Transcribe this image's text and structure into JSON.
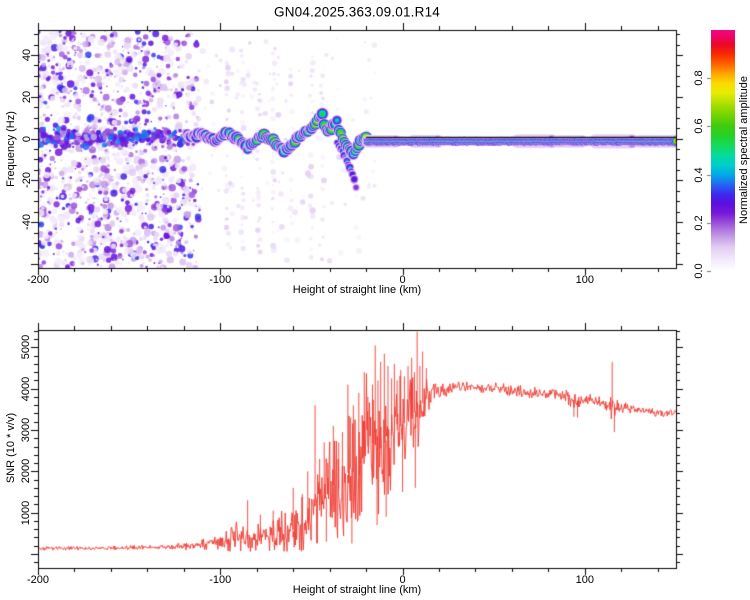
{
  "chart_data": [
    {
      "type": "heatmap",
      "title": "GN04.2025.363.09.01.R14",
      "xlabel": "Height of straight line (km)",
      "ylabel": "Frequency (Hz)",
      "xlim": [
        -200,
        150
      ],
      "ylim": [
        -62,
        52
      ],
      "xticks": {
        "values": [
          -200,
          -100,
          0,
          100
        ],
        "labels": [
          "-200",
          "-100",
          "0",
          "100"
        ]
      },
      "yticks": {
        "values": [
          -40,
          -20,
          0,
          20,
          40
        ],
        "labels": [
          "-40",
          "-20",
          "0",
          "20",
          "40"
        ]
      },
      "colorbar": {
        "label": "Normalized spectral amplitude",
        "tick_values": [
          0,
          0.2,
          0.4,
          0.6,
          0.8
        ],
        "tick_labels": [
          "0.0",
          "0.2",
          "0.4",
          "0.6",
          "0.8"
        ],
        "colormap": [
          [
            0.0,
            "#ffffff"
          ],
          [
            0.05,
            "#f2e8fa"
          ],
          [
            0.1,
            "#e2ccf2"
          ],
          [
            0.15,
            "#be92e4"
          ],
          [
            0.2,
            "#9a4fda"
          ],
          [
            0.24,
            "#7718d8"
          ],
          [
            0.28,
            "#5a0fe0"
          ],
          [
            0.32,
            "#3c2cee"
          ],
          [
            0.36,
            "#2268f2"
          ],
          [
            0.4,
            "#00aae8"
          ],
          [
            0.44,
            "#00cfcc"
          ],
          [
            0.48,
            "#04dc9c"
          ],
          [
            0.52,
            "#14da5c"
          ],
          [
            0.56,
            "#22d228"
          ],
          [
            0.6,
            "#3fcc0f"
          ],
          [
            0.65,
            "#77d400"
          ],
          [
            0.7,
            "#b4e200"
          ],
          [
            0.74,
            "#e8ec00"
          ],
          [
            0.78,
            "#fcd900"
          ],
          [
            0.82,
            "#ffa300"
          ],
          [
            0.86,
            "#ff6000"
          ],
          [
            0.9,
            "#f82a00"
          ],
          [
            0.94,
            "#ec0728"
          ],
          [
            0.97,
            "#ee0460"
          ],
          [
            1.0,
            "#f30585"
          ]
        ]
      },
      "noise": {
        "x_full": [
          -200,
          -125
        ],
        "x_fade": [
          -125,
          -108
        ],
        "count": 1600,
        "band_count": 280,
        "sparse_count": 140
      },
      "streaks": [
        [
          -96,
          0.55
        ],
        [
          -88,
          0.4
        ],
        [
          -79,
          0.5
        ],
        [
          -71,
          0.35
        ],
        [
          -61,
          0.4
        ],
        [
          -50,
          0.45
        ],
        [
          -44,
          0.35
        ]
      ],
      "trace": [
        [
          -118,
          2,
          0.45
        ],
        [
          -114,
          1,
          0.5
        ],
        [
          -110,
          2.5,
          0.5
        ],
        [
          -106,
          0.5,
          0.55
        ],
        [
          -102,
          -1,
          0.55
        ],
        [
          -99,
          1.5,
          0.6
        ],
        [
          -96,
          3,
          0.55
        ],
        [
          -93,
          1,
          0.6
        ],
        [
          -90,
          -0.5,
          0.65
        ],
        [
          -88,
          -2,
          0.6
        ],
        [
          -85,
          -4.5,
          0.55
        ],
        [
          -82,
          -2.5,
          0.6
        ],
        [
          -79,
          0,
          0.72
        ],
        [
          -76,
          1.5,
          0.78
        ],
        [
          -74,
          0.5,
          0.9
        ],
        [
          -72,
          -0.5,
          0.85
        ],
        [
          -70,
          -1.5,
          0.9
        ],
        [
          -68,
          -3.5,
          0.75
        ],
        [
          -65,
          -5.5,
          0.62
        ],
        [
          -62,
          -3.5,
          0.65
        ],
        [
          -59,
          -1,
          0.7
        ],
        [
          -56,
          1,
          0.65
        ],
        [
          -53,
          3,
          0.62
        ],
        [
          -50,
          5,
          0.6
        ],
        [
          -48,
          7,
          0.85
        ],
        [
          -46,
          9.5,
          0.7
        ],
        [
          -44,
          11.5,
          0.55
        ],
        [
          -43,
          7,
          0.6
        ],
        [
          -41,
          3,
          0.7
        ],
        [
          -39,
          5,
          0.75
        ],
        [
          -37,
          7.5,
          0.62
        ],
        [
          -36,
          9,
          0.5
        ],
        [
          -35,
          4,
          0.62
        ],
        [
          -33,
          0,
          0.75
        ],
        [
          -31,
          -3,
          0.7
        ],
        [
          -29,
          -5.5,
          0.65
        ],
        [
          -27,
          -7.5,
          0.6
        ],
        [
          -25,
          -4.5,
          0.7
        ],
        [
          -23,
          -1.5,
          0.8
        ],
        [
          -21,
          0.5,
          0.88
        ],
        [
          -19,
          -1,
          0.92
        ]
      ],
      "tail": [
        [
          -36,
          -2,
          0.35
        ],
        [
          -34,
          -5,
          0.38
        ],
        [
          -32,
          -8,
          0.42
        ],
        [
          -30.5,
          -11,
          0.38
        ],
        [
          -29,
          -14,
          0.42
        ],
        [
          -27.5,
          -17,
          0.36
        ],
        [
          -26.5,
          -20,
          0.32
        ],
        [
          -25.5,
          -23,
          0.3
        ]
      ],
      "flat_band": {
        "x": [
          -19,
          150
        ],
        "freq": -1.3,
        "intensity": 0.95,
        "halo": [
          [
            -20,
            -3,
            1.4
          ],
          [
            6,
            20,
            1.45
          ],
          [
            63,
            82,
            1.55
          ],
          [
            85,
            99,
            1.4
          ],
          [
            105,
            126,
            1.6
          ],
          [
            130,
            150,
            1.45
          ]
        ],
        "core_gap_x": [
          83,
          107
        ]
      },
      "fit_line": {
        "x": [
          -20,
          150
        ],
        "freq": 0.6,
        "color": "#161616"
      }
    },
    {
      "type": "line",
      "xlabel": "Height of straight line (km)",
      "ylabel": "SNR (10 * v/v)",
      "xlim": [
        -200,
        150
      ],
      "ylim": [
        -340,
        5421
      ],
      "xticks": {
        "values": [
          -200,
          -100,
          0,
          100
        ],
        "labels": [
          "-200",
          "-100",
          "0",
          "100"
        ]
      },
      "yticks": {
        "values": [
          1000,
          2000,
          3000,
          4000,
          5000
        ],
        "labels": [
          "1000",
          "2000",
          "3000",
          "4000",
          "5000"
        ]
      },
      "color": "#ee3b32",
      "envelope": [
        [
          -200,
          140,
          55
        ],
        [
          -175,
          140,
          55
        ],
        [
          -150,
          150,
          60
        ],
        [
          -132,
          160,
          70
        ],
        [
          -122,
          185,
          95
        ],
        [
          -113,
          215,
          140
        ],
        [
          -104,
          250,
          200
        ],
        [
          -96,
          290,
          330
        ],
        [
          -89,
          380,
          520
        ],
        [
          -83,
          350,
          300
        ],
        [
          -76,
          400,
          430
        ],
        [
          -69,
          480,
          520
        ],
        [
          -63,
          540,
          640
        ],
        [
          -57,
          640,
          780
        ],
        [
          -52,
          780,
          950
        ],
        [
          -49,
          1250,
          1600
        ],
        [
          -46,
          1000,
          1100
        ],
        [
          -43,
          1300,
          1300
        ],
        [
          -40,
          1500,
          1500
        ],
        [
          -37,
          1750,
          1700
        ],
        [
          -34,
          1500,
          1450
        ],
        [
          -31,
          1900,
          1800
        ],
        [
          -28,
          2100,
          1900
        ],
        [
          -25,
          1750,
          1650
        ],
        [
          -22,
          2300,
          2000
        ],
        [
          -19,
          2600,
          2100
        ],
        [
          -16,
          2700,
          2150
        ],
        [
          -13,
          2500,
          2000
        ],
        [
          -10,
          2700,
          1900
        ],
        [
          -7,
          2850,
          1700
        ],
        [
          -4,
          2950,
          1500
        ],
        [
          -1,
          3100,
          1350
        ],
        [
          2,
          3200,
          1250
        ],
        [
          5,
          3350,
          1250
        ],
        [
          8,
          3500,
          1500
        ],
        [
          11,
          3650,
          800
        ],
        [
          14,
          3800,
          400
        ],
        [
          17,
          3900,
          250
        ],
        [
          21,
          3950,
          180
        ],
        [
          27,
          4000,
          160
        ],
        [
          35,
          4050,
          150
        ],
        [
          45,
          4030,
          150
        ],
        [
          55,
          3980,
          150
        ],
        [
          65,
          3930,
          170
        ],
        [
          75,
          3880,
          190
        ],
        [
          85,
          3830,
          200
        ],
        [
          92,
          3750,
          260
        ],
        [
          97,
          3680,
          280
        ],
        [
          102,
          3740,
          190
        ],
        [
          107,
          3680,
          160
        ],
        [
          112,
          3620,
          170
        ],
        [
          115,
          3550,
          400
        ],
        [
          118,
          3560,
          180
        ],
        [
          124,
          3520,
          140
        ],
        [
          132,
          3470,
          130
        ],
        [
          140,
          3430,
          120
        ],
        [
          150,
          3400,
          110
        ]
      ],
      "spikes": [
        [
          -85,
          1300
        ],
        [
          -78,
          950
        ],
        [
          -71,
          1050
        ],
        [
          -60,
          1600
        ],
        [
          -55,
          1450
        ],
        [
          -52,
          2000
        ],
        [
          -48,
          3600
        ],
        [
          -47,
          250
        ],
        [
          -45.5,
          2300
        ],
        [
          -43,
          2700
        ],
        [
          -41.8,
          300
        ],
        [
          -41,
          2200
        ],
        [
          -38,
          3100
        ],
        [
          -35,
          2700
        ],
        [
          -33,
          2950
        ],
        [
          -30,
          4100
        ],
        [
          -28.5,
          3300
        ],
        [
          -27.8,
          250
        ],
        [
          -27,
          3600
        ],
        [
          -24,
          3900
        ],
        [
          -21,
          4400
        ],
        [
          -19,
          3800
        ],
        [
          -16.5,
          4100
        ],
        [
          -15,
          5050
        ],
        [
          -14,
          700
        ],
        [
          -13.5,
          4200
        ],
        [
          -12,
          4650
        ],
        [
          -10,
          4850
        ],
        [
          -9,
          900
        ],
        [
          -8,
          4550
        ],
        [
          -6,
          4250
        ],
        [
          -4.5,
          4600
        ],
        [
          -3,
          4200
        ],
        [
          -1,
          4450
        ],
        [
          0,
          1500
        ],
        [
          1,
          4300
        ],
        [
          3,
          4550
        ],
        [
          5,
          4750
        ],
        [
          6.5,
          4400
        ],
        [
          7,
          1600
        ],
        [
          8,
          5380
        ],
        [
          9.5,
          4550
        ],
        [
          11,
          4900
        ],
        [
          13,
          4500
        ],
        [
          94,
          3320
        ],
        [
          96,
          3300
        ],
        [
          115,
          4650
        ],
        [
          116.2,
          2950
        ]
      ]
    }
  ]
}
